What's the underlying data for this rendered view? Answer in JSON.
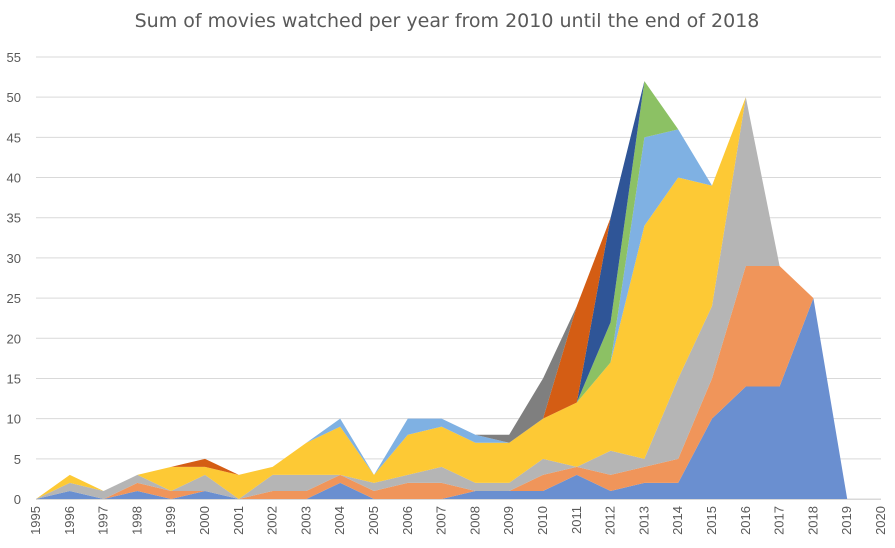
{
  "chart_data": {
    "type": "area",
    "stacked": true,
    "title": "Sum of movies watched per year from 2010 until the end of 2018",
    "xlabel": "",
    "ylabel": "",
    "ylim": [
      0,
      55
    ],
    "y_ticks": [
      0,
      5,
      10,
      15,
      20,
      25,
      30,
      35,
      40,
      45,
      50,
      55
    ],
    "x_ticks": [
      "1995",
      "1996",
      "1997",
      "1998",
      "1999",
      "2000",
      "2001",
      "2002",
      "2003",
      "2004",
      "2005",
      "2006",
      "2007",
      "2008",
      "2009",
      "2010",
      "2011",
      "2012",
      "2013",
      "2014",
      "2015",
      "2016",
      "2017",
      "2018",
      "2019",
      "2020"
    ],
    "grid": true,
    "legend": "none",
    "x": [
      1995,
      1996,
      1997,
      1998,
      1999,
      2000,
      2001,
      2002,
      2003,
      2004,
      2005,
      2006,
      2007,
      2008,
      2009,
      2010,
      2011,
      2012,
      2013,
      2014,
      2015,
      2016,
      2017,
      2018,
      2019,
      2020
    ],
    "series": [
      {
        "color": "#6a8fd0",
        "values": [
          0,
          1,
          0,
          1,
          0,
          1,
          0,
          0,
          0,
          2,
          0,
          0,
          0,
          1,
          1,
          1,
          3,
          1,
          2,
          2,
          10,
          14,
          14,
          25,
          0,
          0
        ]
      },
      {
        "color": "#f0955a",
        "values": [
          0,
          0,
          0,
          1,
          1,
          0,
          0,
          1,
          1,
          1,
          1,
          2,
          2,
          0,
          0,
          2,
          1,
          2,
          2,
          3,
          5,
          15,
          15,
          0,
          0,
          0
        ]
      },
      {
        "color": "#b5b5b5",
        "values": [
          0,
          1,
          1,
          1,
          0,
          2,
          0,
          2,
          2,
          0,
          1,
          1,
          2,
          1,
          1,
          2,
          0,
          3,
          1,
          10,
          9,
          21,
          0,
          0,
          0,
          0
        ]
      },
      {
        "color": "#fdc935",
        "values": [
          0,
          1,
          0,
          0,
          3,
          1,
          3,
          1,
          4,
          6,
          1,
          5,
          5,
          5,
          5,
          5,
          8,
          11,
          29,
          25,
          15,
          0,
          0,
          0,
          0,
          0
        ]
      },
      {
        "color": "#7fb1e3",
        "values": [
          0,
          0,
          0,
          0,
          0,
          0,
          0,
          0,
          0,
          1,
          0,
          2,
          1,
          1,
          0,
          0,
          0,
          0,
          11,
          6,
          0,
          0,
          0,
          0,
          0,
          0
        ]
      },
      {
        "color": "#8cc164",
        "values": [
          0,
          0,
          0,
          0,
          0,
          0,
          0,
          0,
          0,
          0,
          0,
          0,
          0,
          0,
          0,
          0,
          0,
          5,
          7,
          0,
          0,
          0,
          0,
          0,
          0,
          0
        ]
      },
      {
        "color": "#2f5597",
        "values": [
          0,
          0,
          0,
          0,
          0,
          0,
          0,
          0,
          0,
          0,
          0,
          0,
          0,
          0,
          0,
          0,
          0,
          13,
          0,
          0,
          0,
          0,
          0,
          0,
          0,
          0
        ]
      },
      {
        "color": "#d45d14",
        "values": [
          0,
          0,
          0,
          0,
          0,
          1,
          0,
          0,
          0,
          0,
          0,
          0,
          0,
          0,
          0,
          0,
          12,
          0,
          0,
          0,
          0,
          0,
          0,
          0,
          0,
          0
        ]
      },
      {
        "color": "#7f7f7f",
        "values": [
          0,
          0,
          0,
          0,
          0,
          0,
          0,
          0,
          0,
          0,
          0,
          0,
          0,
          0,
          1,
          5,
          0,
          0,
          0,
          0,
          0,
          0,
          0,
          0,
          0,
          0
        ]
      }
    ]
  }
}
